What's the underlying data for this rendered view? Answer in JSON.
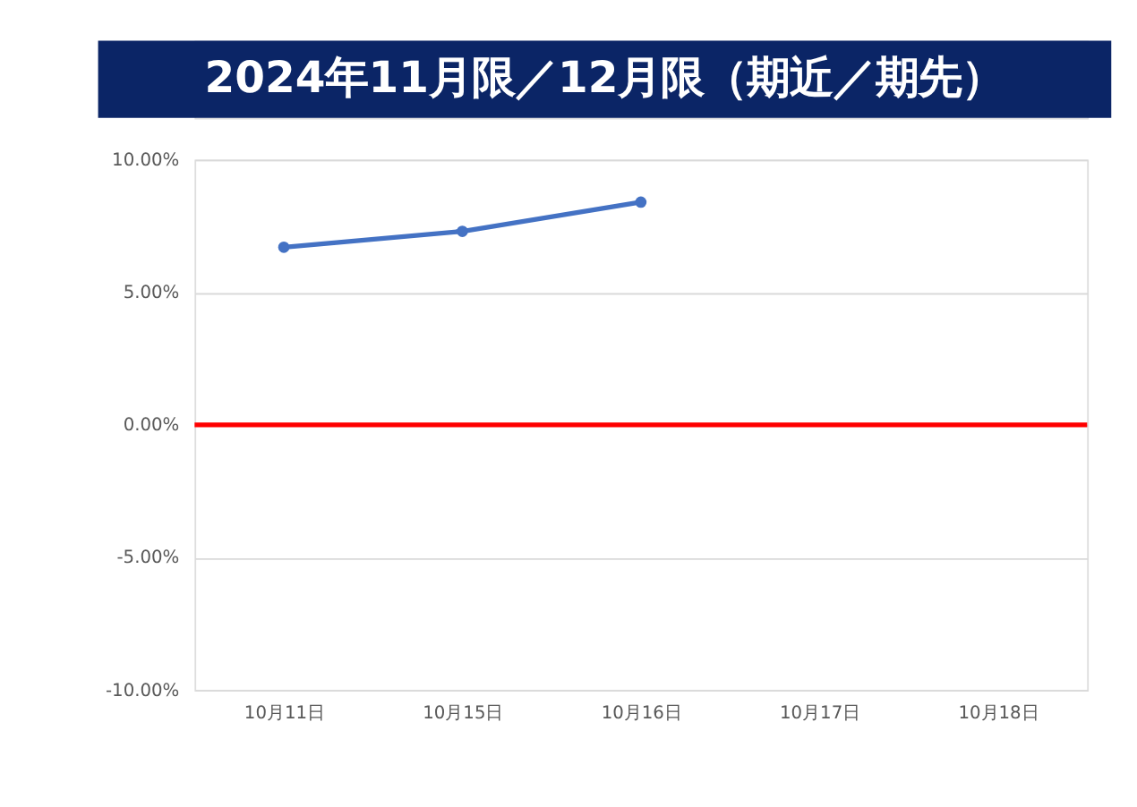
{
  "chart_data": {
    "type": "line",
    "title": "2024年11月限／12月限（期近／期先）",
    "categories": [
      "10月11日",
      "10月15日",
      "10月16日",
      "10月17日",
      "10月18日"
    ],
    "series": [
      {
        "color": "#4472c4",
        "values": [
          6.7,
          7.3,
          8.4,
          null,
          null
        ]
      }
    ],
    "ylim": [
      -10,
      10
    ],
    "yticks": [
      {
        "value": -10,
        "label": "-10.00%"
      },
      {
        "value": -5,
        "label": "-5.00%"
      },
      {
        "value": 0,
        "label": "0.00%"
      },
      {
        "value": 5,
        "label": "5.00%"
      },
      {
        "value": 10,
        "label": "10.00%"
      }
    ],
    "ref_lines": [
      {
        "axis": "y",
        "value": 0,
        "color": "#ff0000"
      }
    ],
    "grid": "y",
    "marker": "circle",
    "line_style": "solid"
  }
}
